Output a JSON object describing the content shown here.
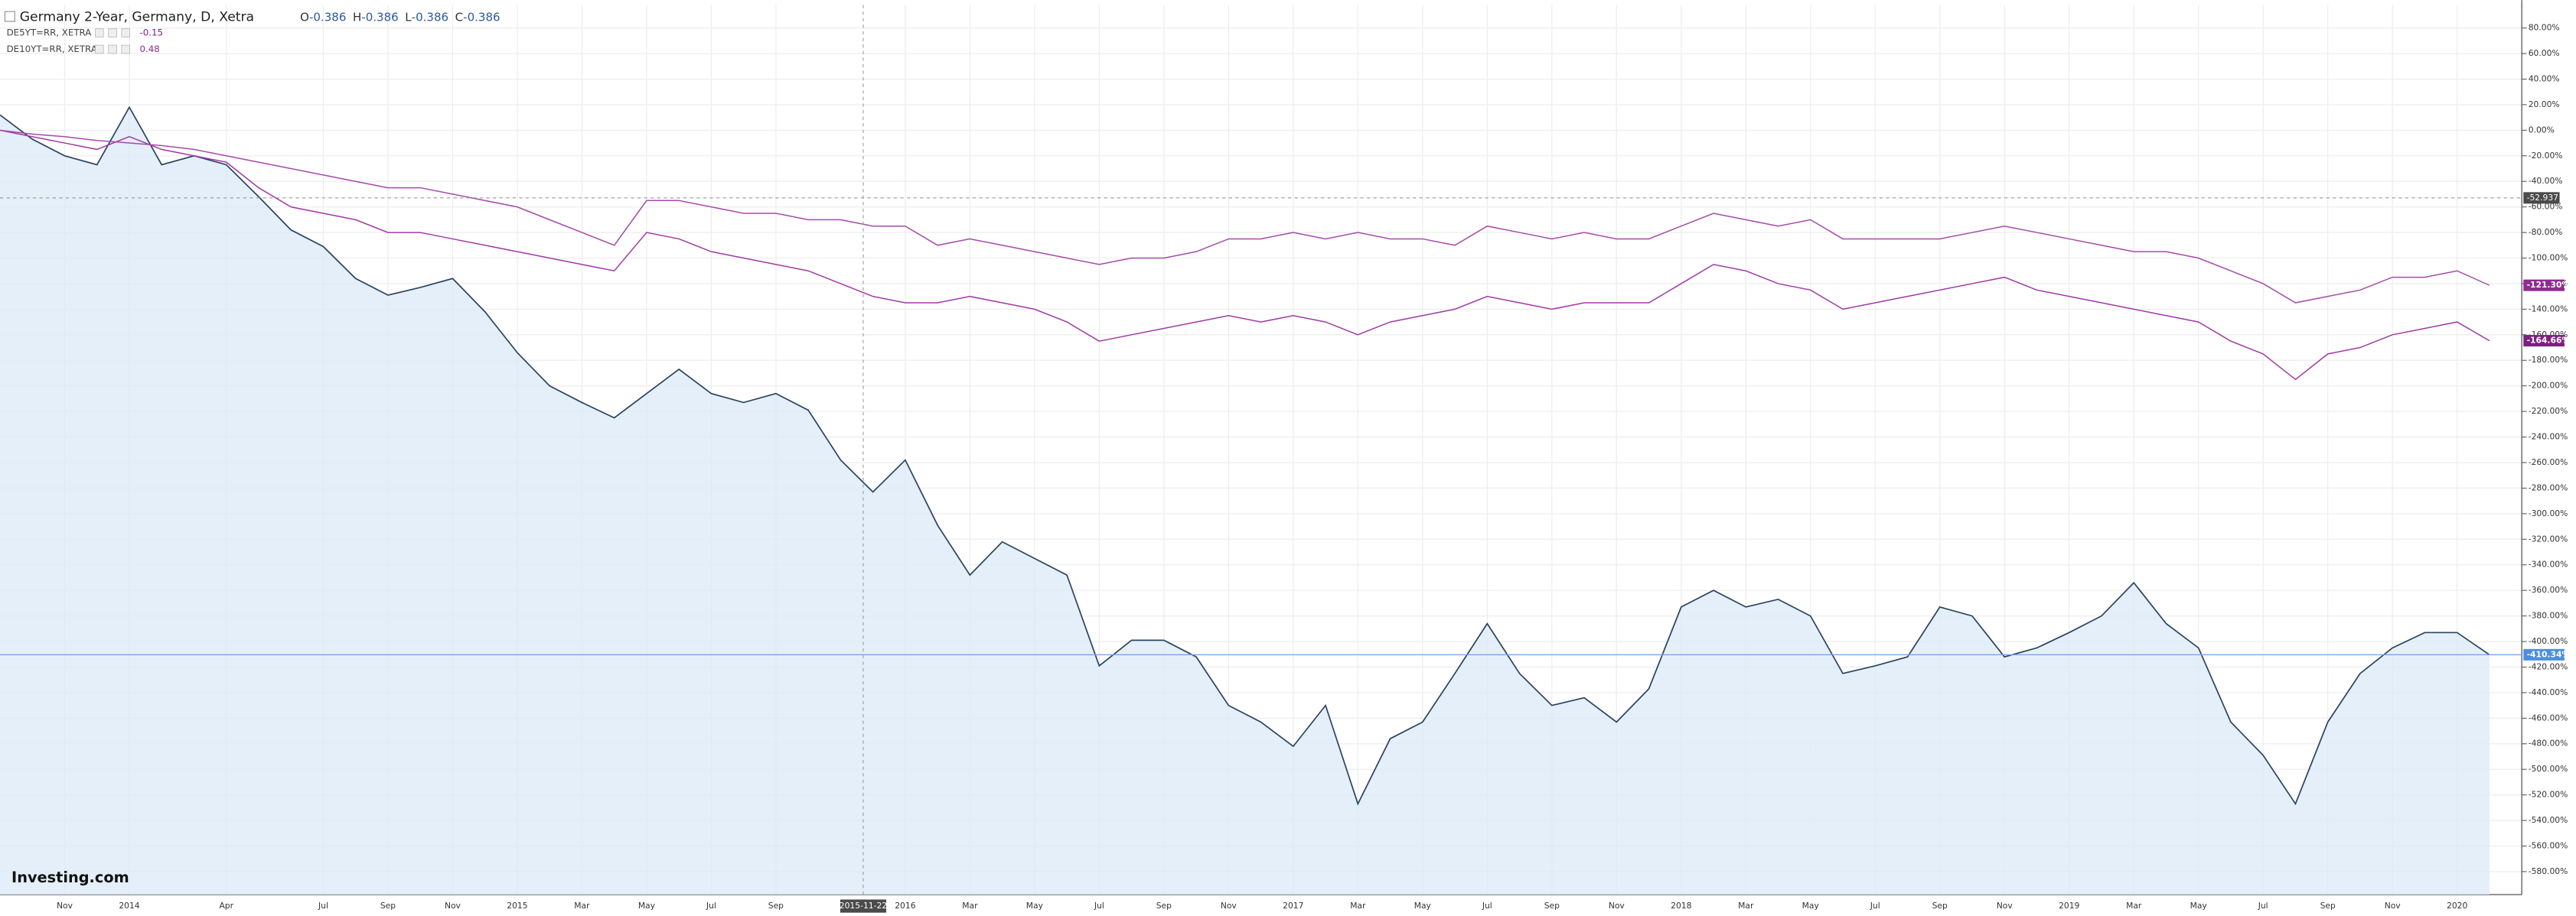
{
  "chart_data": {
    "type": "line",
    "title": "Germany 2-Year, Germany, D, Xetra",
    "ohlc": [
      {
        "label": "O",
        "value": -0.386
      },
      {
        "label": "H",
        "value": -0.386
      },
      {
        "label": "L",
        "value": -0.386
      },
      {
        "label": "C",
        "value": -0.386
      }
    ],
    "logo": "Investing.com",
    "x": [
      "2013-09",
      "2013-10",
      "2013-11",
      "2013-12",
      "2014-01",
      "2014-02",
      "2014-03",
      "2014-04",
      "2014-05",
      "2014-06",
      "2014-07",
      "2014-08",
      "2014-09",
      "2014-10",
      "2014-11",
      "2014-12",
      "2015-01",
      "2015-02",
      "2015-03",
      "2015-04",
      "2015-05",
      "2015-06",
      "2015-07",
      "2015-08",
      "2015-09",
      "2015-10",
      "2015-11",
      "2015-12",
      "2016-01",
      "2016-02",
      "2016-03",
      "2016-04",
      "2016-05",
      "2016-06",
      "2016-07",
      "2016-08",
      "2016-09",
      "2016-10",
      "2016-11",
      "2016-12",
      "2017-01",
      "2017-02",
      "2017-03",
      "2017-04",
      "2017-05",
      "2017-06",
      "2017-07",
      "2017-08",
      "2017-09",
      "2017-10",
      "2017-11",
      "2017-12",
      "2018-01",
      "2018-02",
      "2018-03",
      "2018-04",
      "2018-05",
      "2018-06",
      "2018-07",
      "2018-08",
      "2018-09",
      "2018-10",
      "2018-11",
      "2018-12",
      "2019-01",
      "2019-02",
      "2019-03",
      "2019-04",
      "2019-05",
      "2019-06",
      "2019-07",
      "2019-08",
      "2019-09",
      "2019-10",
      "2019-11",
      "2019-12",
      "2020-01",
      "2020-02"
    ],
    "series": [
      {
        "name": "Germany 2-Year, Germany, D, Xetra",
        "color": "#2b4560",
        "fill": "#dce9f7",
        "end_label": "-410.34%",
        "values": [
          12,
          -7,
          -20,
          -27,
          18,
          -27,
          -20,
          -27,
          -52,
          -78,
          -91,
          -116,
          -129,
          -123,
          -116,
          -142,
          -174,
          -200,
          -213,
          -225,
          -206,
          -187,
          -206,
          -213,
          -206,
          -219,
          -258,
          -283,
          -258,
          -309,
          -348,
          -322,
          -335,
          -348,
          -419,
          -399,
          -399,
          -412,
          -450,
          -463,
          -482,
          -450,
          -527,
          -476,
          -463,
          -425,
          -386,
          -425,
          -450,
          -444,
          -463,
          -437,
          -373,
          -360,
          -373,
          -367,
          -380,
          -425,
          -419,
          -412,
          -373,
          -380,
          -412,
          -405,
          -393,
          -380,
          -354,
          -386,
          -405,
          -463,
          -489,
          -527,
          -463,
          -425,
          -405,
          -393,
          -393,
          -410.34
        ]
      },
      {
        "name": "DE5YT=RR, XETRA",
        "legend_value": -0.15,
        "color": "#a03aa6",
        "label_color": "#7d1f80",
        "end_label": "-164.66%",
        "values": [
          0,
          -5,
          -10,
          -15,
          -5,
          -15,
          -20,
          -25,
          -45,
          -60,
          -65,
          -70,
          -80,
          -80,
          -85,
          -90,
          -95,
          -100,
          -105,
          -110,
          -80,
          -85,
          -95,
          -100,
          -105,
          -110,
          -120,
          -130,
          -135,
          -135,
          -130,
          -135,
          -140,
          -150,
          -165,
          -160,
          -155,
          -150,
          -145,
          -150,
          -145,
          -150,
          -160,
          -150,
          -145,
          -140,
          -130,
          -135,
          -140,
          -135,
          -135,
          -135,
          -120,
          -105,
          -110,
          -120,
          -125,
          -140,
          -135,
          -130,
          -125,
          -120,
          -115,
          -125,
          -130,
          -135,
          -140,
          -145,
          -150,
          -165,
          -175,
          -195,
          -175,
          -170,
          -160,
          -155,
          -150,
          -164.66
        ]
      },
      {
        "name": "DE10YT=RR, XETRA",
        "legend_value": 0.48,
        "color": "#a64aaa",
        "label_color": "#8e2c8f",
        "end_label": "-121.30%",
        "values": [
          0,
          -3,
          -5,
          -8,
          -10,
          -12,
          -15,
          -20,
          -25,
          -30,
          -35,
          -40,
          -45,
          -45,
          -50,
          -55,
          -60,
          -70,
          -80,
          -90,
          -55,
          -55,
          -60,
          -65,
          -65,
          -70,
          -70,
          -75,
          -75,
          -90,
          -85,
          -90,
          -95,
          -100,
          -105,
          -100,
          -100,
          -95,
          -85,
          -85,
          -80,
          -85,
          -80,
          -85,
          -85,
          -90,
          -75,
          -80,
          -85,
          -80,
          -85,
          -85,
          -75,
          -65,
          -70,
          -75,
          -70,
          -85,
          -85,
          -85,
          -85,
          -80,
          -75,
          -80,
          -85,
          -90,
          -95,
          -95,
          -100,
          -110,
          -120,
          -135,
          -130,
          -125,
          -115,
          -115,
          -110,
          -121.3
        ]
      }
    ],
    "crosshair": {
      "x": "2015-11-22",
      "y": -52.937
    },
    "xlim": [
      "2013-09",
      "2020-03"
    ],
    "xticks": [
      {
        "value": "2013-11",
        "label": "Nov"
      },
      {
        "value": "2014-01",
        "label": "2014"
      },
      {
        "value": "2014-04",
        "label": "Apr"
      },
      {
        "value": "2014-07",
        "label": "Jul"
      },
      {
        "value": "2014-09",
        "label": "Sep"
      },
      {
        "value": "2014-11",
        "label": "Nov"
      },
      {
        "value": "2015-01",
        "label": "2015"
      },
      {
        "value": "2015-03",
        "label": "Mar"
      },
      {
        "value": "2015-05",
        "label": "May"
      },
      {
        "value": "2015-07",
        "label": "Jul"
      },
      {
        "value": "2015-09",
        "label": "Sep"
      },
      {
        "value": "2016-01",
        "label": "2016"
      },
      {
        "value": "2016-03",
        "label": "Mar"
      },
      {
        "value": "2016-05",
        "label": "May"
      },
      {
        "value": "2016-07",
        "label": "Jul"
      },
      {
        "value": "2016-09",
        "label": "Sep"
      },
      {
        "value": "2016-11",
        "label": "Nov"
      },
      {
        "value": "2017-01",
        "label": "2017"
      },
      {
        "value": "2017-03",
        "label": "Mar"
      },
      {
        "value": "2017-05",
        "label": "May"
      },
      {
        "value": "2017-07",
        "label": "Jul"
      },
      {
        "value": "2017-09",
        "label": "Sep"
      },
      {
        "value": "2017-11",
        "label": "Nov"
      },
      {
        "value": "2018-01",
        "label": "2018"
      },
      {
        "value": "2018-03",
        "label": "Mar"
      },
      {
        "value": "2018-05",
        "label": "May"
      },
      {
        "value": "2018-07",
        "label": "Jul"
      },
      {
        "value": "2018-09",
        "label": "Sep"
      },
      {
        "value": "2018-11",
        "label": "Nov"
      },
      {
        "value": "2019-01",
        "label": "2019"
      },
      {
        "value": "2019-03",
        "label": "Mar"
      },
      {
        "value": "2019-05",
        "label": "May"
      },
      {
        "value": "2019-07",
        "label": "Jul"
      },
      {
        "value": "2019-09",
        "label": "Sep"
      },
      {
        "value": "2019-11",
        "label": "Nov"
      },
      {
        "value": "2020-01",
        "label": "2020"
      }
    ],
    "ylim": [
      -598,
      98
    ],
    "yticks": [
      {
        "value": 80,
        "label": "80.00%"
      },
      {
        "value": 60,
        "label": "60.00%"
      },
      {
        "value": 40,
        "label": "40.00%"
      },
      {
        "value": 20,
        "label": "20.00%"
      },
      {
        "value": 0,
        "label": "0.00%"
      },
      {
        "value": -20,
        "label": "-20.00%"
      },
      {
        "value": -40,
        "label": "-40.00%"
      },
      {
        "value": -60,
        "label": "-60.00%"
      },
      {
        "value": -80,
        "label": "-80.00%"
      },
      {
        "value": -100,
        "label": "-100.00%"
      },
      {
        "value": -120,
        "label": "-120.00%"
      },
      {
        "value": -140,
        "label": "-140.00%"
      },
      {
        "value": -160,
        "label": "-160.00%"
      },
      {
        "value": -180,
        "label": "-180.00%"
      },
      {
        "value": -200,
        "label": "-200.00%"
      },
      {
        "value": -220,
        "label": "-220.00%"
      },
      {
        "value": -240,
        "label": "-240.00%"
      },
      {
        "value": -260,
        "label": "-260.00%"
      },
      {
        "value": -280,
        "label": "-280.00%"
      },
      {
        "value": -300,
        "label": "-300.00%"
      },
      {
        "value": -320,
        "label": "-320.00%"
      },
      {
        "value": -340,
        "label": "-340.00%"
      },
      {
        "value": -360,
        "label": "-360.00%"
      },
      {
        "value": -380,
        "label": "-380.00%"
      },
      {
        "value": -400,
        "label": "-400.00%"
      },
      {
        "value": -420,
        "label": "-420.00%"
      },
      {
        "value": -440,
        "label": "-440.00%"
      },
      {
        "value": -460,
        "label": "-460.00%"
      },
      {
        "value": -480,
        "label": "-480.00%"
      },
      {
        "value": -500,
        "label": "-500.00%"
      },
      {
        "value": -520,
        "label": "-520.00%"
      },
      {
        "value": -540,
        "label": "-540.00%"
      },
      {
        "value": -560,
        "label": "-560.00%"
      },
      {
        "value": -580,
        "label": "-580.00%"
      }
    ],
    "grid": true
  }
}
